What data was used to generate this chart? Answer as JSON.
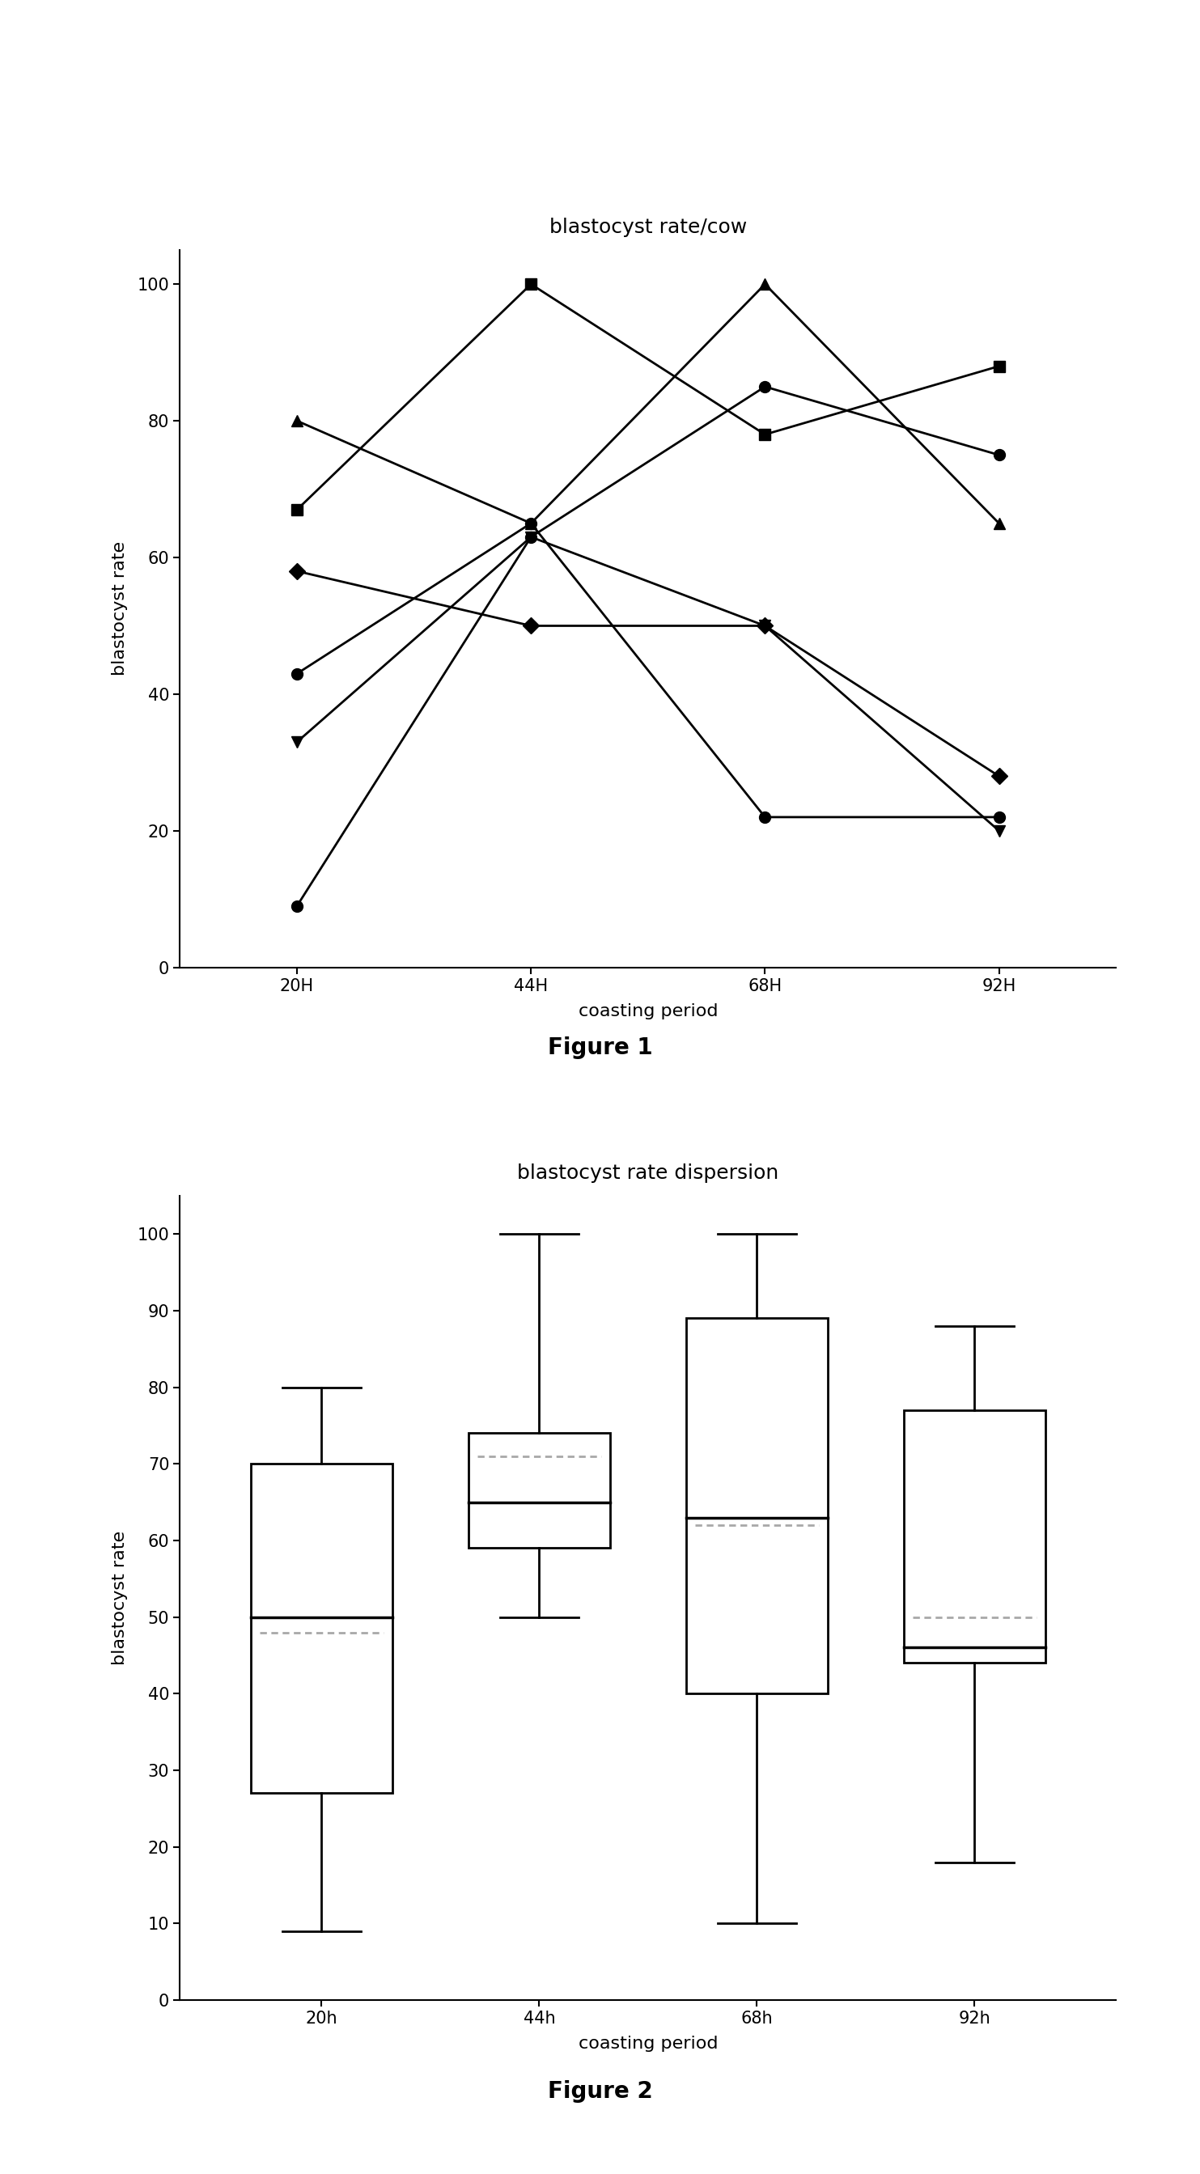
{
  "fig1_title": "blastocyst rate/cow",
  "fig1_xlabel": "coasting period",
  "fig1_ylabel": "blastocyst rate",
  "fig1_caption": "Figure 1",
  "fig1_xticklabels": [
    "20H",
    "44H",
    "68H",
    "92H"
  ],
  "fig1_xlim": [
    -0.5,
    3.5
  ],
  "fig1_ylim": [
    0,
    105
  ],
  "fig1_yticks": [
    0,
    20,
    40,
    60,
    80,
    100
  ],
  "fig1_series": [
    {
      "marker": "^",
      "values": [
        80,
        65,
        100,
        65
      ]
    },
    {
      "marker": "s",
      "values": [
        67,
        100,
        78,
        88
      ]
    },
    {
      "marker": "D",
      "values": [
        58,
        50,
        50,
        28
      ]
    },
    {
      "marker": "o",
      "values": [
        43,
        65,
        22,
        22
      ]
    },
    {
      "marker": "v",
      "values": [
        33,
        63,
        50,
        20
      ]
    },
    {
      "marker": "o",
      "values": [
        9,
        63,
        85,
        75
      ]
    }
  ],
  "fig2_title": "blastocyst rate dispersion",
  "fig2_xlabel": "coasting period",
  "fig2_ylabel": "blastocyst rate",
  "fig2_caption": "Figure 2",
  "fig2_xticklabels": [
    "20h",
    "44h",
    "68h",
    "92h"
  ],
  "fig2_ylim": [
    0,
    105
  ],
  "fig2_yticks": [
    0,
    10,
    20,
    30,
    40,
    50,
    60,
    70,
    80,
    90,
    100
  ],
  "fig2_boxes": [
    {
      "whislo": 9,
      "q1": 27,
      "med": 50,
      "mean": 48,
      "q3": 70,
      "whishi": 80
    },
    {
      "whislo": 50,
      "q1": 59,
      "med": 65,
      "mean": 71,
      "q3": 74,
      "whishi": 100
    },
    {
      "whislo": 10,
      "q1": 40,
      "med": 63,
      "mean": 62,
      "q3": 89,
      "whishi": 100
    },
    {
      "whislo": 18,
      "q1": 44,
      "med": 46,
      "mean": 50,
      "q3": 77,
      "whishi": 88
    }
  ],
  "line_color": "#000000",
  "box_color": "#000000",
  "background_color": "#ffffff",
  "fig1_title_fontsize": 18,
  "fig2_title_fontsize": 18,
  "label_fontsize": 16,
  "tick_fontsize": 15,
  "caption_fontsize": 20
}
